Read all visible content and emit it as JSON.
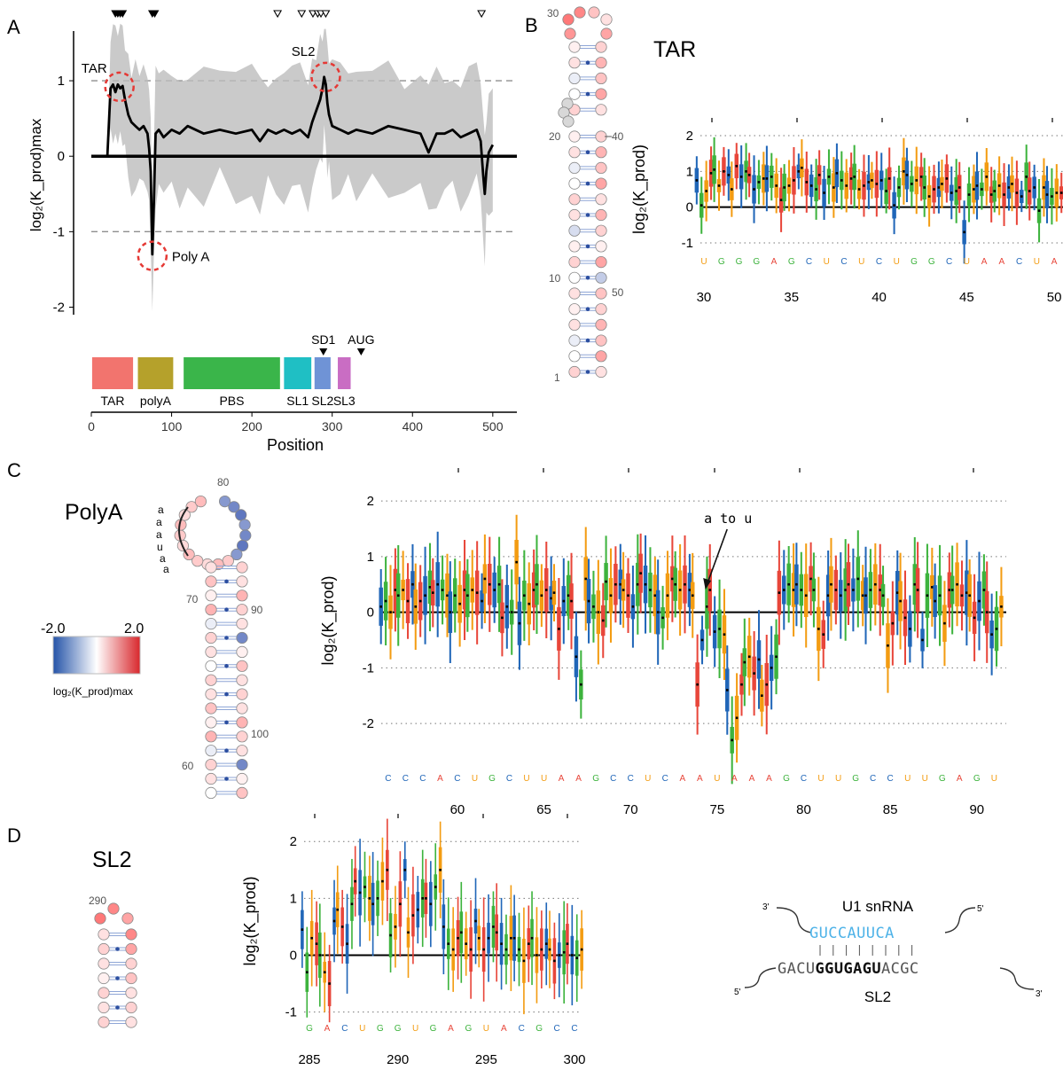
{
  "panel_labels": {
    "A": "A",
    "B": "B",
    "C": "C",
    "D": "D"
  },
  "colors": {
    "A": "#e8463a",
    "C": "#2066b8",
    "G": "#3db33d",
    "U": "#f39c12",
    "trace": "#000000",
    "band": "#bdbdbd",
    "dash": "#8e8e8e",
    "highlight": "#e53935",
    "region_TAR": "#f2746e",
    "region_polyA": "#b5a12b",
    "region_PBS": "#3ab54a",
    "region_SL1": "#1fbfc4",
    "region_SL2": "#6f93d6",
    "region_SL3": "#c96dc3",
    "u1": "#4fb3e8"
  },
  "colorbar": {
    "min_label": "-2.0",
    "max_label": "2.0",
    "label": "log₂(K_prod)max"
  },
  "struct_numbers": {
    "tar": [
      "30",
      "20",
      "40",
      "10",
      "50",
      "1"
    ],
    "polya": [
      "80",
      "70",
      "90",
      "100",
      "60"
    ],
    "sl2": [
      "290"
    ]
  },
  "polya_bracket_letters": [
    "a",
    "a",
    "a",
    "u",
    "a",
    "a"
  ],
  "u1": {
    "title": "U1 snRNA",
    "top_seq": "GUCCAUUCA",
    "bottom_pre": "GACU",
    "bottom_bold": "GGUGAGU",
    "bottom_post": "ACGC",
    "label": "SL2",
    "top_left": "3'",
    "top_right": "5'",
    "bottom_left": "5'",
    "bottom_right": "3'"
  },
  "chart_data": [
    {
      "id": "A",
      "type": "line",
      "xlabel": "Position",
      "ylabel": "log₂(K_prod)max",
      "xlim": [
        0,
        530
      ],
      "ylim": [
        -2.1,
        1.6
      ],
      "xticks": [
        0,
        100,
        200,
        300,
        400,
        500
      ],
      "yticks": [
        -2,
        -1,
        0,
        1
      ],
      "hlines": [
        1,
        -1
      ],
      "annotations": [
        {
          "text": "TAR",
          "x": 35,
          "y": 0.92
        },
        {
          "text": "SL2",
          "x": 292,
          "y": 1.05
        },
        {
          "text": "Poly A",
          "x": 76,
          "y": -1.32
        }
      ],
      "top_markers": {
        "filled": [
          30,
          33,
          36,
          39,
          76,
          79
        ],
        "open": [
          232,
          262,
          276,
          282,
          286,
          292,
          486
        ]
      },
      "regions": [
        {
          "name": "TAR",
          "start": 1,
          "end": 52
        },
        {
          "name": "polyA",
          "start": 58,
          "end": 102
        },
        {
          "name": "PBS",
          "start": 115,
          "end": 235
        },
        {
          "name": "SL1",
          "start": 240,
          "end": 274
        },
        {
          "name": "SL2",
          "start": 278,
          "end": 298
        },
        {
          "name": "SL3",
          "start": 307,
          "end": 323
        }
      ],
      "region_markers": [
        {
          "text": "SD1",
          "x": 289
        },
        {
          "text": "AUG",
          "x": 336
        }
      ],
      "series": [
        {
          "x": [
            0,
            20,
            24,
            27,
            30,
            33,
            36,
            39,
            42,
            46,
            50,
            55,
            60,
            65,
            70,
            72,
            74,
            76,
            78,
            80,
            84,
            90,
            100,
            110,
            120,
            140,
            160,
            180,
            200,
            210,
            220,
            230,
            240,
            250,
            260,
            270,
            275,
            280,
            285,
            288,
            290,
            292,
            294,
            296,
            300,
            310,
            320,
            330,
            350,
            370,
            390,
            410,
            420,
            430,
            440,
            450,
            460,
            470,
            480,
            485,
            488,
            490,
            492,
            495,
            500
          ],
          "y": [
            0,
            0,
            0.9,
            0.95,
            0.85,
            0.95,
            0.9,
            0.93,
            0.75,
            0.55,
            0.45,
            0.4,
            0.35,
            0.4,
            0.3,
            0.1,
            -0.2,
            -1.3,
            -0.6,
            0.3,
            0.35,
            0.25,
            0.35,
            0.3,
            0.4,
            0.3,
            0.35,
            0.3,
            0.35,
            0.2,
            0.35,
            0.3,
            0.35,
            0.3,
            0.35,
            0.25,
            0.45,
            0.6,
            0.75,
            0.9,
            1.05,
            0.95,
            0.7,
            0.55,
            0.4,
            0.35,
            0.3,
            0.35,
            0.3,
            0.4,
            0.35,
            0.3,
            0.05,
            0.3,
            0.3,
            0.35,
            0.25,
            0.3,
            0.35,
            0.2,
            -0.25,
            -0.5,
            -0.2,
            0.05,
            0.15
          ]
        }
      ]
    },
    {
      "id": "B",
      "type": "box",
      "title": "TAR",
      "ylabel": "log₂(K_prod)",
      "x_start": 30,
      "xlim": [
        29.8,
        50.5
      ],
      "ylim": [
        -1.2,
        2.2
      ],
      "xticks": [
        30,
        35,
        40,
        45,
        50
      ],
      "yticks": [
        -1,
        0,
        1,
        2
      ],
      "sequence": "UGGGAGCUCUCUGGCUAACUA",
      "replicates": 4,
      "medians": [
        [
          0.75,
          0.05,
          0.45,
          0.95
        ],
        [
          1.05,
          0.6,
          1.0,
          0.9
        ],
        [
          0.5,
          1.15,
          0.85,
          1.0
        ],
        [
          0.9,
          0.5,
          0.7,
          0.8
        ],
        [
          0.8,
          0.85,
          0.6,
          0.2
        ],
        [
          0.55,
          0.6,
          0.75,
          1.0
        ],
        [
          1.1,
          0.7,
          0.6,
          0.5
        ],
        [
          0.9,
          0.4,
          0.85,
          0.55
        ],
        [
          0.95,
          0.75,
          0.6,
          0.8
        ],
        [
          0.85,
          0.5,
          0.6,
          0.7
        ],
        [
          0.75,
          0.65,
          0.75,
          0.45
        ],
        [
          0.8,
          0.05,
          0.55,
          1.0
        ],
        [
          0.9,
          0.65,
          0.75,
          0.85
        ],
        [
          0.55,
          0.3,
          0.5,
          0.55
        ],
        [
          0.65,
          0.8,
          0.4,
          0.45
        ],
        [
          0.55,
          -0.7,
          0.35,
          0.5
        ],
        [
          0.6,
          0.5,
          0.85,
          0.35
        ],
        [
          0.45,
          0.6,
          0.35,
          0.55
        ],
        [
          0.65,
          0.4,
          0.3,
          0.85
        ],
        [
          0.45,
          0.55,
          -0.1,
          0.55
        ],
        [
          0.35,
          0.3,
          0.4,
          0.4
        ]
      ]
    },
    {
      "id": "C",
      "type": "box",
      "title": "PolyA",
      "ylabel": "log₂(K_prod)",
      "x_start": 56,
      "xlim": [
        55.6,
        91.7
      ],
      "ylim": [
        -2.7,
        2.4
      ],
      "xticks": [
        60,
        65,
        70,
        75,
        80,
        85,
        90
      ],
      "yticks": [
        -2,
        -1,
        0,
        1,
        2
      ],
      "sequence": "CCCACUGCUUAAGCCUCAAUAAAGCUUGCCUUGAGU",
      "annotation": {
        "text": "a to u",
        "x": 74.3,
        "y": 0.5
      },
      "replicates": 4,
      "medians": [
        [
          0.1,
          0.2,
          0.0,
          0.4
        ],
        [
          0.3,
          0.4,
          0.2,
          0.5
        ],
        [
          0.1,
          0.2,
          0.3,
          0.45
        ],
        [
          0.35,
          0.5,
          0.4,
          0.3
        ],
        [
          0.0,
          0.3,
          0.15,
          0.4
        ],
        [
          0.3,
          0.4,
          0.35,
          0.2
        ],
        [
          0.6,
          0.5,
          0.4,
          0.5
        ],
        [
          -0.1,
          0.1,
          0.0,
          0.9
        ],
        [
          -0.2,
          0.3,
          0.15,
          0.4
        ],
        [
          0.5,
          0.3,
          0.4,
          0.25
        ],
        [
          0.35,
          -0.3,
          0.2,
          0.3
        ],
        [
          0.2,
          -0.8,
          -1.3,
          0.6
        ],
        [
          0.2,
          0.1,
          0.0,
          -0.15
        ],
        [
          0.55,
          0.3,
          0.5,
          0.5
        ],
        [
          0.4,
          0.3,
          0.1,
          0.5
        ],
        [
          0.7,
          0.5,
          0.4,
          0.3
        ],
        [
          0.0,
          -0.1,
          0.3,
          0.6
        ],
        [
          0.5,
          0.4,
          0.5,
          0.4
        ],
        [
          0.3,
          -1.3,
          -0.5,
          0.1
        ],
        [
          0.4,
          -0.35,
          -0.3,
          -0.4
        ],
        [
          -1.4,
          -2.3,
          -1.9,
          -1.3
        ],
        [
          -0.9,
          -0.8,
          -1.1,
          -0.85
        ],
        [
          -1.5,
          -1.3,
          -1.0,
          -0.8
        ],
        [
          0.35,
          0.4,
          0.5,
          0.4
        ],
        [
          0.5,
          0.4,
          0.3,
          0.6
        ],
        [
          0.4,
          -0.3,
          -0.4,
          0.3
        ],
        [
          0.5,
          0.4,
          0.3,
          0.4
        ],
        [
          0.5,
          0.4,
          0.6,
          0.3
        ],
        [
          0.3,
          0.4,
          0.5,
          0.4
        ],
        [
          0.3,
          -0.6,
          -0.2,
          0.35
        ],
        [
          0.2,
          -0.1,
          -0.3,
          0.5
        ],
        [
          0.4,
          -0.5,
          0.3,
          0.45
        ],
        [
          0.2,
          0.3,
          -0.2,
          0.4
        ],
        [
          0.4,
          0.5,
          0.3,
          0.35
        ],
        [
          0.3,
          -0.1,
          0.2,
          0.4
        ],
        [
          0.0,
          -0.4,
          -0.3,
          0.1
        ]
      ]
    },
    {
      "id": "D",
      "type": "box",
      "title": "SL2",
      "ylabel": "log₂(K_prod)",
      "x_start": 285,
      "xlim": [
        284.7,
        300.4
      ],
      "ylim": [
        -1.1,
        2.3
      ],
      "xticks": [
        285,
        290,
        295,
        300
      ],
      "yticks": [
        -1,
        0,
        1,
        2
      ],
      "sequence": "GACUGGUGAGUACGCC",
      "replicates": 4,
      "medians": [
        [
          0.45,
          -0.3,
          0.3,
          0.2
        ],
        [
          0.0,
          -0.3,
          -0.5,
          0.6
        ],
        [
          0.8,
          0.5,
          0.2,
          0.9
        ],
        [
          1.3,
          1.1,
          1.2,
          1.0
        ],
        [
          0.9,
          1.0,
          1.3,
          1.5
        ],
        [
          0.35,
          0.5,
          0.9,
          1.5
        ],
        [
          0.4,
          0.7,
          0.8,
          1.0
        ],
        [
          1.0,
          0.9,
          1.2,
          1.5
        ],
        [
          0.5,
          0.2,
          0.1,
          0.3
        ],
        [
          0.4,
          0.2,
          0.1,
          0.6
        ],
        [
          0.3,
          0.1,
          0.3,
          0.5
        ],
        [
          0.4,
          0.2,
          0.1,
          0.3
        ],
        [
          0.3,
          0.1,
          -0.1,
          0.2
        ],
        [
          0.3,
          0.0,
          0.1,
          0.2
        ],
        [
          0.1,
          -0.1,
          0.0,
          0.05
        ],
        [
          0.2,
          0.0,
          -0.05,
          0.1
        ]
      ]
    }
  ]
}
